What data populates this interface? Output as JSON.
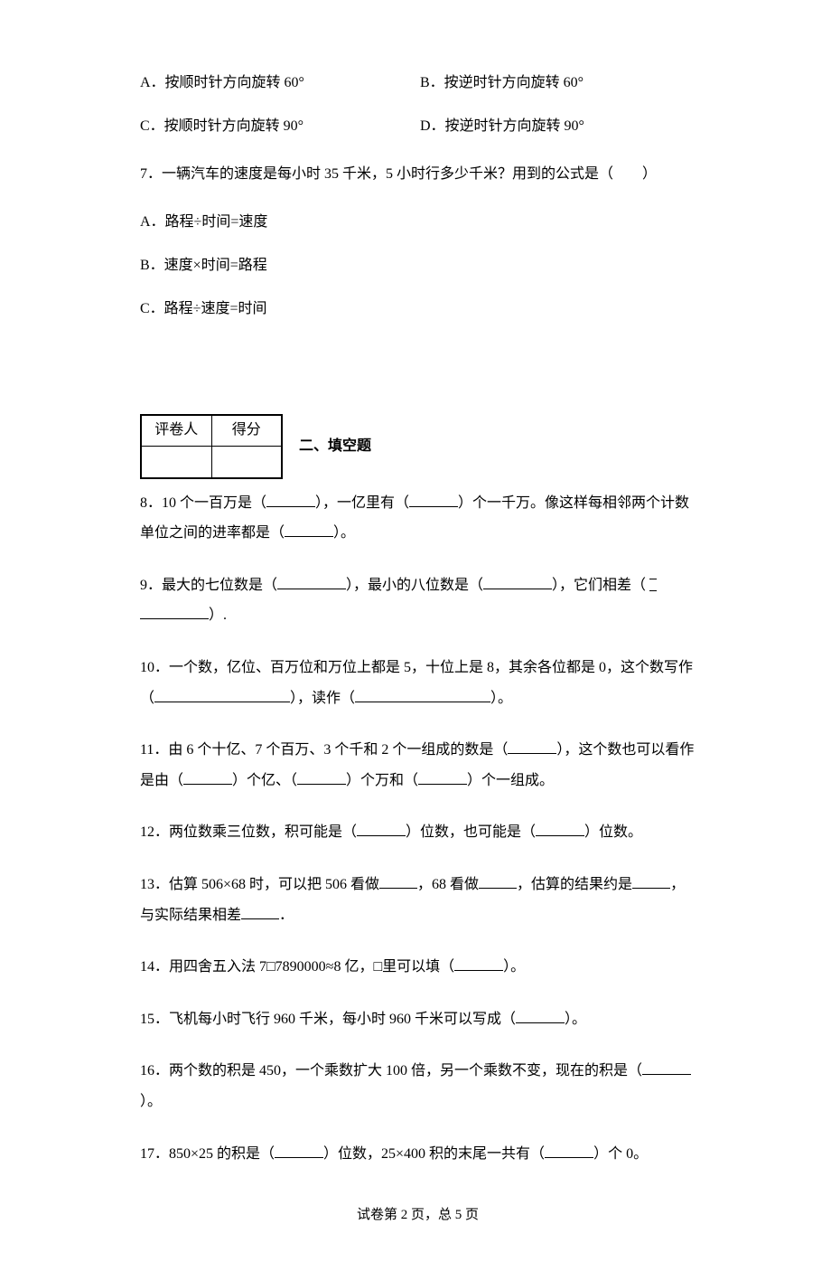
{
  "q6": {
    "A": "A．按顺时针方向旋转 60°",
    "B": "B．按逆时针方向旋转 60°",
    "C": "C．按顺时针方向旋转 90°",
    "D": "D．按逆时针方向旋转 90°"
  },
  "q7": {
    "stem": "7．一辆汽车的速度是每小时 35 千米，5 小时行多少千米？用到的公式是（　　）",
    "A": "A．路程÷时间=速度",
    "B": "B．速度×时间=路程",
    "C": "C．路程÷速度=时间"
  },
  "grader": {
    "col1": "评卷人",
    "col2": "得分"
  },
  "section2_title": "二、填空题",
  "q8": {
    "pre": "8．10 个一百万是（",
    "mid1": "），一亿里有（",
    "mid2": "）个一千万。像这样每相邻两个计数单位之间的进率都是（",
    "post": "）。"
  },
  "q9": {
    "pre": "9．最大的七位数是（",
    "mid1": "），最小的八位数是（",
    "mid2": "），它们相差（",
    "post": "）."
  },
  "q10": {
    "pre": "10．一个数，亿位、百万位和万位上都是 5，十位上是 8，其余各位都是 0，这个数写作（",
    "mid": "），读作（",
    "post": "）。"
  },
  "q11": {
    "pre": "11．由 6 个十亿、7 个百万、3 个千和 2 个一组成的数是（",
    "mid1": "），这个数也可以看作是由（",
    "mid2": "）个亿、（",
    "mid3": "）个万和（",
    "post": "）个一组成。"
  },
  "q12": {
    "pre": "12．两位数乘三位数，积可能是（",
    "mid": "）位数，也可能是（",
    "post": "）位数。"
  },
  "q13": {
    "pre": "13．估算 506×68 时，可以把 506 看做",
    "mid1": "，68 看做",
    "mid2": "，估算的结果约是",
    "mid3": "，与实际结果相差",
    "post": "．"
  },
  "q14": {
    "pre": "14．用四舍五入法  7□7890000≈8 亿，□里可以填（",
    "post": "）。"
  },
  "q15": {
    "pre": "15．飞机每小时飞行 960 千米，每小时 960 千米可以写成（",
    "post": "）。"
  },
  "q16": {
    "pre": "16．两个数的积是 450，一个乘数扩大 100 倍，另一个乘数不变，现在的积是（",
    "post": "）。"
  },
  "q17": {
    "pre": "17．850×25 的积是（",
    "mid": "）位数，25×400 积的末尾一共有（",
    "post": "）个 0。"
  },
  "footer": "试卷第 2 页，总 5 页"
}
